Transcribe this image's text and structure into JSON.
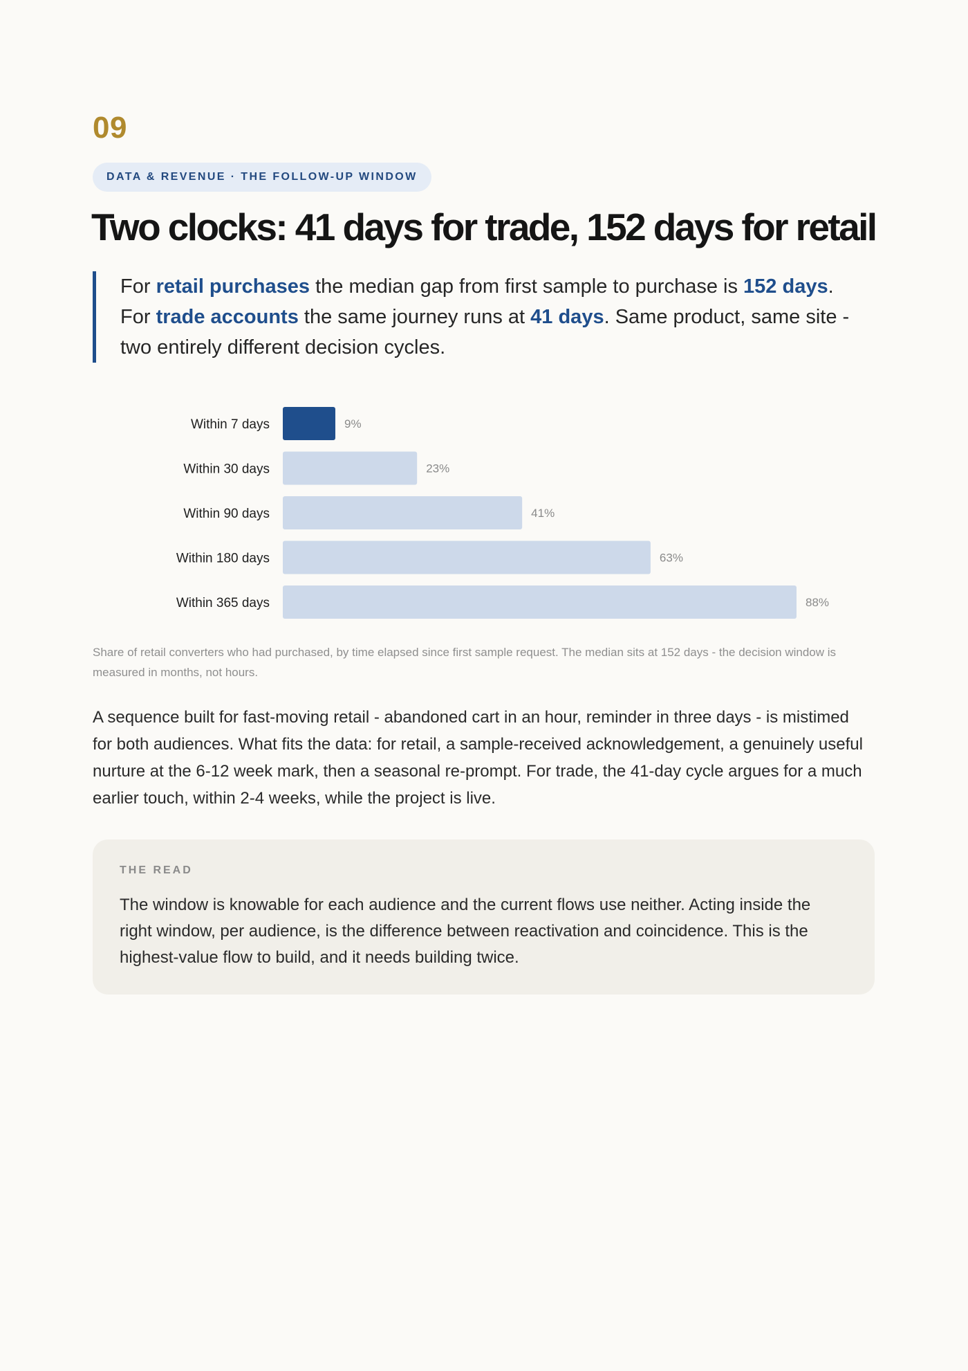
{
  "section_number": "09",
  "eyebrow": "DATA & REVENUE · THE FOLLOW-UP WINDOW",
  "title": "Two clocks: 41 days for trade, 152 days for retail",
  "pull_quote": {
    "p1": "For ",
    "h1": "retail purchases",
    "p2": " the median gap from first sample to purchase is ",
    "h2": "152 days",
    "p3": ". For ",
    "h3": "trade accounts",
    "p4": " the same journey runs at ",
    "h4": "41 days",
    "p5": ". Same product, same site - two entirely different decision cycles."
  },
  "colors": {
    "accent": "#1f4e8c",
    "bar_highlight": "#1f4e8c",
    "bar_default": "#cdd9ea",
    "number_gold": "#b08a2e"
  },
  "chart_data": {
    "type": "bar",
    "orientation": "horizontal",
    "categories": [
      "Within 7 days",
      "Within 30 days",
      "Within 90 days",
      "Within 180 days",
      "Within 365 days"
    ],
    "values": [
      9,
      23,
      41,
      63,
      88
    ],
    "value_labels": [
      "9%",
      "23%",
      "41%",
      "63%",
      "88%"
    ],
    "highlighted": [
      0
    ],
    "xlim": [
      0,
      100
    ],
    "grid": false
  },
  "caption": "Share of retail converters who had purchased, by time elapsed since first sample request. The median sits at 152 days - the decision window is measured in months, not hours.",
  "body": "A sequence built for fast-moving retail - abandoned cart in an hour, reminder in three days - is mistimed for both audiences. What fits the data: for retail, a sample-received acknowledgement, a genuinely useful nurture at the 6-12 week mark, then a seasonal re-prompt. For trade, the 41-day cycle argues for a much earlier touch, within 2-4 weeks, while the project is live.",
  "the_read": {
    "label": "THE READ",
    "text": "The window is knowable for each audience and the current flows use neither. Acting inside the right window, per audience, is the difference between reactivation and coincidence. This is the highest-value flow to build, and it needs building twice."
  }
}
